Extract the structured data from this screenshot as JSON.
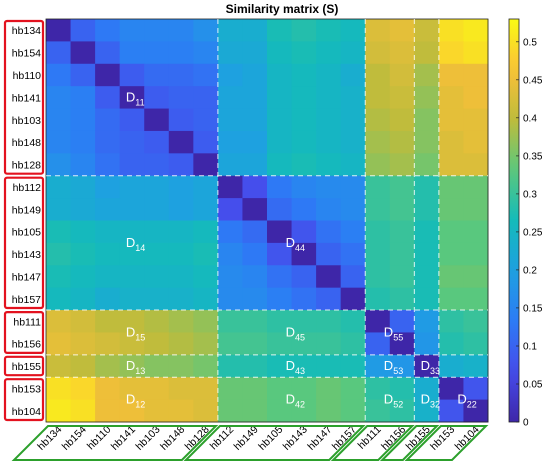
{
  "chart_data": {
    "type": "heatmap",
    "title": "Similarity matrix (S)",
    "labels": [
      "hb134",
      "hb154",
      "hb110",
      "hb141",
      "hb103",
      "hb148",
      "hb128",
      "hb112",
      "hb149",
      "hb105",
      "hb143",
      "hb147",
      "hb157",
      "hb111",
      "hb156",
      "hb155",
      "hb153",
      "hb104"
    ],
    "groups": [
      {
        "id": 1,
        "members": [
          "hb134",
          "hb154",
          "hb110",
          "hb141",
          "hb103",
          "hb148",
          "hb128"
        ]
      },
      {
        "id": 4,
        "members": [
          "hb112",
          "hb149",
          "hb105",
          "hb143",
          "hb147",
          "hb157"
        ]
      },
      {
        "id": 5,
        "members": [
          "hb111",
          "hb156"
        ]
      },
      {
        "id": 3,
        "members": [
          "hb155"
        ]
      },
      {
        "id": 2,
        "members": [
          "hb153",
          "hb104"
        ]
      }
    ],
    "block_labels": [
      {
        "main": "D",
        "sub": "11",
        "row_group": 0,
        "col_group": 0
      },
      {
        "main": "D",
        "sub": "14",
        "row_group": 1,
        "col_group": 0
      },
      {
        "main": "D",
        "sub": "44",
        "row_group": 1,
        "col_group": 1
      },
      {
        "main": "D",
        "sub": "15",
        "row_group": 2,
        "col_group": 0
      },
      {
        "main": "D",
        "sub": "45",
        "row_group": 2,
        "col_group": 1
      },
      {
        "main": "D",
        "sub": "55",
        "row_group": 2,
        "col_group": 2
      },
      {
        "main": "D",
        "sub": "13",
        "row_group": 3,
        "col_group": 0
      },
      {
        "main": "D",
        "sub": "43",
        "row_group": 3,
        "col_group": 1
      },
      {
        "main": "D",
        "sub": "53",
        "row_group": 3,
        "col_group": 2
      },
      {
        "main": "D",
        "sub": "33",
        "row_group": 3,
        "col_group": 3
      },
      {
        "main": "D",
        "sub": "12",
        "row_group": 4,
        "col_group": 0
      },
      {
        "main": "D",
        "sub": "42",
        "row_group": 4,
        "col_group": 1
      },
      {
        "main": "D",
        "sub": "52",
        "row_group": 4,
        "col_group": 2
      },
      {
        "main": "D",
        "sub": "32",
        "row_group": 4,
        "col_group": 3
      },
      {
        "main": "D",
        "sub": "22",
        "row_group": 4,
        "col_group": 4
      }
    ],
    "colorbar": {
      "min": 0,
      "max": 0.53,
      "ticks": [
        0,
        0.05,
        0.1,
        0.15,
        0.2,
        0.25,
        0.3,
        0.35,
        0.4,
        0.45,
        0.5
      ],
      "colormap": "parula"
    },
    "values": [
      [
        0.0,
        0.1,
        0.13,
        0.15,
        0.15,
        0.15,
        0.17,
        0.23,
        0.23,
        0.27,
        0.28,
        0.27,
        0.26,
        0.43,
        0.44,
        0.41,
        0.5,
        0.51
      ],
      [
        0.1,
        0.0,
        0.1,
        0.14,
        0.14,
        0.14,
        0.15,
        0.22,
        0.22,
        0.26,
        0.27,
        0.26,
        0.25,
        0.42,
        0.43,
        0.4,
        0.49,
        0.5
      ],
      [
        0.13,
        0.1,
        0.0,
        0.09,
        0.11,
        0.11,
        0.12,
        0.2,
        0.21,
        0.25,
        0.26,
        0.25,
        0.23,
        0.4,
        0.42,
        0.38,
        0.45,
        0.45
      ],
      [
        0.15,
        0.14,
        0.09,
        0.0,
        0.09,
        0.1,
        0.1,
        0.21,
        0.21,
        0.25,
        0.26,
        0.25,
        0.24,
        0.4,
        0.41,
        0.37,
        0.44,
        0.45
      ],
      [
        0.15,
        0.14,
        0.11,
        0.09,
        0.0,
        0.09,
        0.1,
        0.21,
        0.21,
        0.25,
        0.26,
        0.25,
        0.24,
        0.39,
        0.4,
        0.36,
        0.44,
        0.44
      ],
      [
        0.15,
        0.14,
        0.11,
        0.1,
        0.09,
        0.0,
        0.09,
        0.2,
        0.2,
        0.25,
        0.26,
        0.25,
        0.24,
        0.38,
        0.39,
        0.36,
        0.43,
        0.44
      ],
      [
        0.17,
        0.15,
        0.12,
        0.1,
        0.1,
        0.09,
        0.0,
        0.21,
        0.21,
        0.26,
        0.27,
        0.26,
        0.25,
        0.37,
        0.38,
        0.35,
        0.43,
        0.43
      ],
      [
        0.23,
        0.22,
        0.2,
        0.21,
        0.21,
        0.2,
        0.21,
        0.0,
        0.07,
        0.13,
        0.15,
        0.16,
        0.16,
        0.3,
        0.31,
        0.28,
        0.34,
        0.34
      ],
      [
        0.23,
        0.22,
        0.21,
        0.21,
        0.21,
        0.2,
        0.21,
        0.07,
        0.0,
        0.11,
        0.13,
        0.15,
        0.16,
        0.3,
        0.31,
        0.28,
        0.34,
        0.34
      ],
      [
        0.27,
        0.26,
        0.25,
        0.25,
        0.25,
        0.25,
        0.26,
        0.13,
        0.11,
        0.0,
        0.08,
        0.12,
        0.14,
        0.29,
        0.3,
        0.27,
        0.33,
        0.33
      ],
      [
        0.28,
        0.27,
        0.26,
        0.26,
        0.26,
        0.26,
        0.27,
        0.15,
        0.13,
        0.08,
        0.0,
        0.1,
        0.12,
        0.29,
        0.3,
        0.27,
        0.33,
        0.33
      ],
      [
        0.27,
        0.26,
        0.25,
        0.25,
        0.25,
        0.25,
        0.26,
        0.16,
        0.15,
        0.12,
        0.1,
        0.0,
        0.1,
        0.29,
        0.3,
        0.27,
        0.34,
        0.34
      ],
      [
        0.26,
        0.25,
        0.23,
        0.24,
        0.24,
        0.24,
        0.25,
        0.16,
        0.16,
        0.14,
        0.12,
        0.1,
        0.0,
        0.28,
        0.29,
        0.27,
        0.33,
        0.33
      ],
      [
        0.43,
        0.42,
        0.4,
        0.4,
        0.39,
        0.38,
        0.37,
        0.3,
        0.3,
        0.29,
        0.29,
        0.29,
        0.28,
        0.0,
        0.1,
        0.19,
        0.29,
        0.3
      ],
      [
        0.44,
        0.43,
        0.42,
        0.41,
        0.4,
        0.39,
        0.38,
        0.31,
        0.31,
        0.3,
        0.3,
        0.3,
        0.29,
        0.1,
        0.0,
        0.18,
        0.28,
        0.29
      ],
      [
        0.41,
        0.4,
        0.38,
        0.37,
        0.36,
        0.36,
        0.35,
        0.28,
        0.28,
        0.27,
        0.27,
        0.27,
        0.27,
        0.19,
        0.18,
        0.0,
        0.23,
        0.24
      ],
      [
        0.5,
        0.49,
        0.45,
        0.44,
        0.44,
        0.43,
        0.43,
        0.34,
        0.34,
        0.33,
        0.33,
        0.34,
        0.33,
        0.29,
        0.28,
        0.23,
        0.0,
        0.08
      ],
      [
        0.51,
        0.5,
        0.45,
        0.45,
        0.44,
        0.44,
        0.43,
        0.34,
        0.34,
        0.33,
        0.33,
        0.34,
        0.33,
        0.3,
        0.29,
        0.24,
        0.08,
        0.0
      ]
    ],
    "colors": {
      "group_row_box": "#e3121f",
      "group_col_box": "#2ca02c",
      "separator": "#ffffff"
    }
  }
}
